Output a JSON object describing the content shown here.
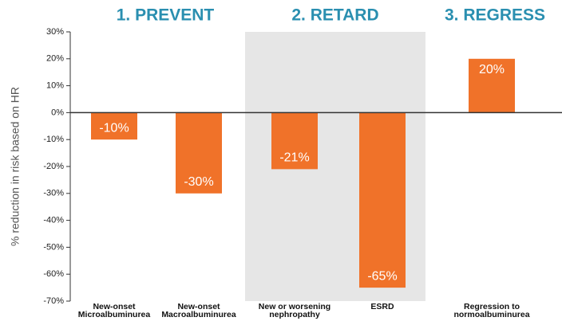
{
  "chart_data": {
    "type": "bar",
    "categories": [
      [
        "New-onset",
        "Microalbuminurea"
      ],
      [
        "New-onset",
        "Macroalbuminurea"
      ],
      [
        "New or worsening",
        "nephropathy"
      ],
      [
        "ESRD"
      ],
      [
        "Regression to",
        "normoalbuminurea"
      ]
    ],
    "values": [
      -10,
      -30,
      -21,
      -65,
      20
    ],
    "value_labels": [
      "-10%",
      "-30%",
      "-21%",
      "-65%",
      "20%"
    ],
    "color": "#f07229",
    "ylabel": "% reduction in risk based on HR",
    "ylim": [
      -70,
      30
    ],
    "yticks": [
      {
        "value": 30,
        "label": "30%"
      },
      {
        "value": 20,
        "label": "20%"
      },
      {
        "value": 10,
        "label": "10%"
      },
      {
        "value": 0,
        "label": "0%"
      },
      {
        "value": -10,
        "label": "-10%"
      },
      {
        "value": -20,
        "label": "-20%"
      },
      {
        "value": -30,
        "label": "-30%"
      },
      {
        "value": -40,
        "label": "-40%"
      },
      {
        "value": -50,
        "label": "-50%"
      },
      {
        "value": -60,
        "label": "-60%"
      },
      {
        "value": -70,
        "label": "-70%"
      }
    ],
    "annotations": [
      "1. PREVENT",
      "2. RETARD",
      "3. REGRESS"
    ]
  }
}
